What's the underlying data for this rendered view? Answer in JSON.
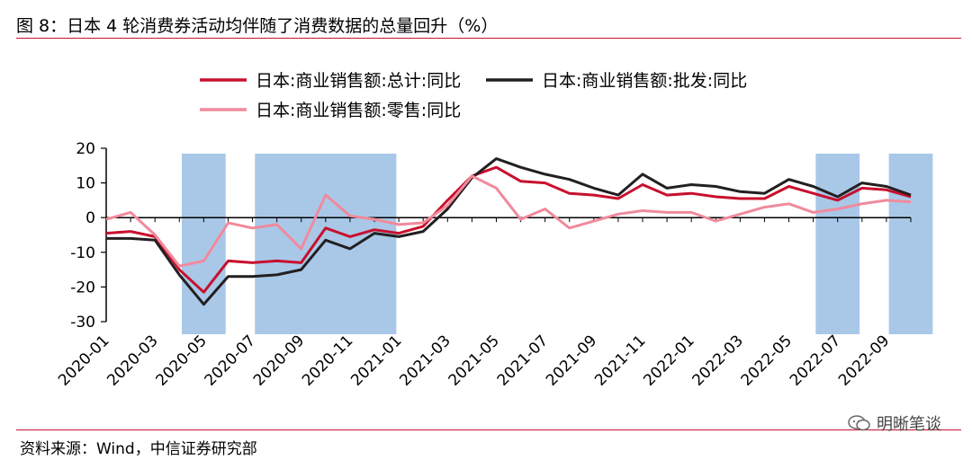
{
  "figure": {
    "title": "图 8：日本 4 轮消费券活动均伴随了消费数据的总量回升（%）",
    "source": "资料来源：Wind，中信证券研究部",
    "watermark": "明晰笔谈",
    "watermark_icon": "wechat-icon"
  },
  "chart_data": {
    "type": "line",
    "title": "",
    "xlabel": "",
    "ylabel": "",
    "ylim": [
      -30,
      20
    ],
    "yticks": [
      20,
      10,
      0,
      -10,
      -20,
      -30
    ],
    "x_tick_labels": [
      "2020-01",
      "2020-03",
      "2020-05",
      "2020-07",
      "2020-09",
      "2020-11",
      "2021-01",
      "2021-03",
      "2021-05",
      "2021-07",
      "2021-09",
      "2021-11",
      "2022-01",
      "2022-03",
      "2022-05",
      "2022-07",
      "2022-09"
    ],
    "grid": false,
    "legend": "top",
    "x": [
      "2020-01",
      "2020-02",
      "2020-03",
      "2020-04",
      "2020-05",
      "2020-06",
      "2020-07",
      "2020-08",
      "2020-09",
      "2020-10",
      "2020-11",
      "2020-12",
      "2021-01",
      "2021-02",
      "2021-03",
      "2021-04",
      "2021-05",
      "2021-06",
      "2021-07",
      "2021-08",
      "2021-09",
      "2021-10",
      "2021-11",
      "2021-12",
      "2022-01",
      "2022-02",
      "2022-03",
      "2022-04",
      "2022-05",
      "2022-06",
      "2022-07",
      "2022-08",
      "2022-09",
      "2022-10"
    ],
    "series": [
      {
        "name": "日本:商业销售额:总计:同比",
        "color": "#c8102e",
        "values": [
          -4.5,
          -4,
          -5.5,
          -15,
          -21.5,
          -12.5,
          -13,
          -12.5,
          -13,
          -3,
          -5.5,
          -3.5,
          -4.5,
          -2.5,
          5,
          12,
          14.5,
          10.5,
          10,
          7,
          6.5,
          5.5,
          9.5,
          6.5,
          7,
          6,
          5.5,
          5.5,
          9,
          7,
          5,
          8.5,
          8,
          6
        ]
      },
      {
        "name": "日本:商业销售额:批发:同比",
        "color": "#231f20",
        "values": [
          -6,
          -6,
          -6.5,
          -16.5,
          -25,
          -17,
          -17,
          -16.5,
          -15,
          -6.5,
          -9,
          -4.5,
          -5.5,
          -4,
          2.5,
          11.5,
          17,
          14.5,
          12.5,
          11,
          8.5,
          6.5,
          12.5,
          8.5,
          9.5,
          9,
          7.5,
          7,
          11,
          9,
          6,
          10,
          9,
          6.5
        ]
      },
      {
        "name": "日本:商业销售额:零售:同比",
        "color": "#f08a9c",
        "values": [
          -0.5,
          1.5,
          -5,
          -14,
          -12.5,
          -1.5,
          -3,
          -2,
          -9,
          6.5,
          0.5,
          -0.5,
          -2,
          -1.5,
          3.5,
          12,
          8.5,
          -0.5,
          2.5,
          -3,
          -1,
          1,
          2,
          1.5,
          1.5,
          -1,
          1,
          3,
          4,
          1.5,
          2.5,
          4,
          5,
          4.5
        ]
      }
    ],
    "shaded_periods": [
      [
        "2020-05",
        "2020-05"
      ],
      [
        "2020-08",
        "2020-12"
      ],
      [
        "2022-07",
        "2022-07"
      ],
      [
        "2022-10",
        "2022-10"
      ]
    ],
    "shade_color": "#a9c8e8"
  }
}
